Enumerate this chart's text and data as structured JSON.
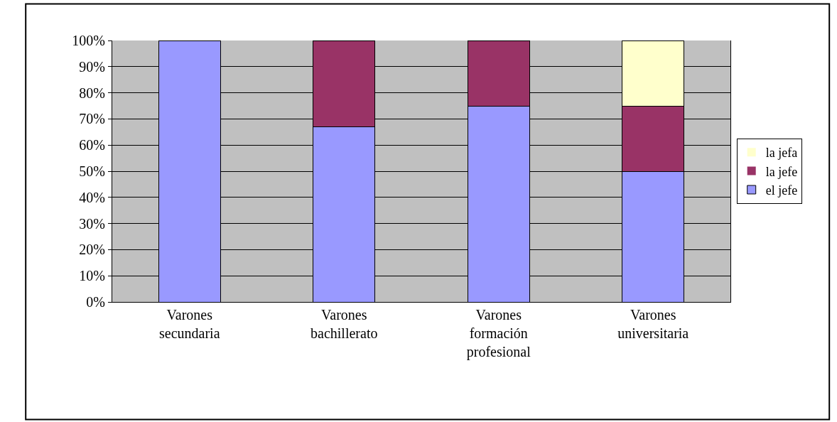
{
  "chart_data": {
    "type": "bar",
    "stacked": true,
    "categories": [
      "Varones\nsecundaria",
      "Varones\nbachillerato",
      "Varones\nformación\nprofesional",
      "Varones\nuniversitaria"
    ],
    "series": [
      {
        "name": "el jefe",
        "color": "#9999ff",
        "values": [
          100,
          67,
          75,
          50
        ]
      },
      {
        "name": "la jefe",
        "color": "#993366",
        "values": [
          0,
          33,
          25,
          25
        ]
      },
      {
        "name": "la jefa",
        "color": "#ffffcc",
        "values": [
          0,
          0,
          0,
          25
        ]
      }
    ],
    "ylim": [
      0,
      100
    ],
    "yticks": [
      {
        "value": 0,
        "label": "0%"
      },
      {
        "value": 10,
        "label": "10%"
      },
      {
        "value": 20,
        "label": "20%"
      },
      {
        "value": 30,
        "label": "30%"
      },
      {
        "value": 40,
        "label": "40%"
      },
      {
        "value": 50,
        "label": "50%"
      },
      {
        "value": 60,
        "label": "60%"
      },
      {
        "value": 70,
        "label": "70%"
      },
      {
        "value": 80,
        "label": "80%"
      },
      {
        "value": 90,
        "label": "90%"
      },
      {
        "value": 100,
        "label": "100%"
      }
    ],
    "grid": "y",
    "legend": "right"
  }
}
